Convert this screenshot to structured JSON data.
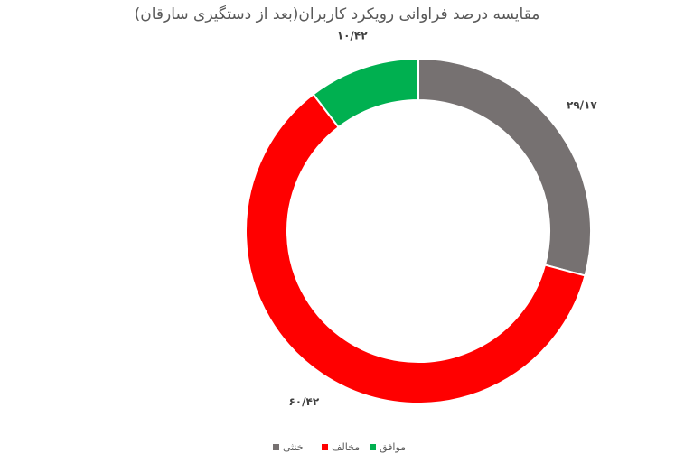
{
  "chart_data": {
    "type": "pie",
    "variant": "doughnut",
    "title": "مقایسه درصد فراوانی رویکرد کاربران(بعد از دستگیری سارقان)",
    "slices": [
      {
        "name": "خنثی",
        "value": 29.17,
        "label": "۲۹/۱۷",
        "color": "#767171"
      },
      {
        "name": "مخالف",
        "value": 60.42,
        "label": "۶۰/۴۲",
        "color": "#ff0000"
      },
      {
        "name": "موافق",
        "value": 10.42,
        "label": "۱۰/۴۲",
        "color": "#00b050"
      }
    ],
    "legend_placement": "bottom",
    "start_angle": "top",
    "direction": "clockwise"
  }
}
